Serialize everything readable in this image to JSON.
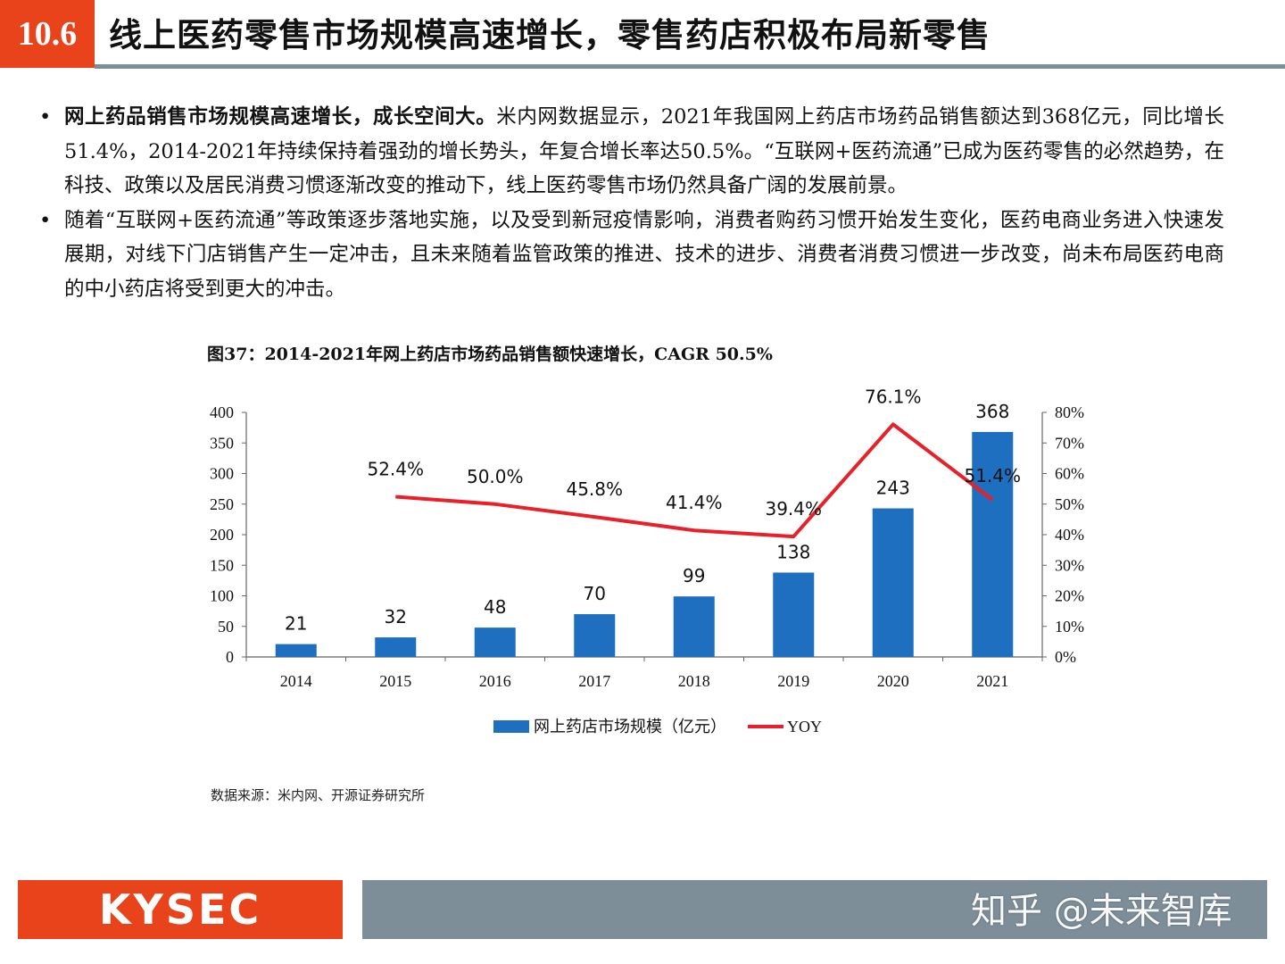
{
  "header": {
    "section_number": "10.6",
    "title": "线上医药零售市场规模高速增长，零售药店积极布局新零售"
  },
  "bullets": [
    {
      "lead": "网上药品销售市场规模高速增长，成长空间大。",
      "text": "米内网数据显示，2021年我国网上药店市场药品销售额达到368亿元，同比增长51.4%，2014-2021年持续保持着强劲的增长势头，年复合增长率达50.5%。“互联网+医药流通”已成为医药零售的必然趋势，在科技、政策以及居民消费习惯逐渐改变的推动下，线上医药零售市场仍然具备广阔的发展前景。"
    },
    {
      "lead": "",
      "text": "随着“互联网+医药流通”等政策逐步落地实施，以及受到新冠疫情影响，消费者购药习惯开始发生变化，医药电商业务进入快速发展期，对线下门店销售产生一定冲击，且未来随着监管政策的推进、技术的进步、消费者消费习惯进一步改变，尚未布局医药电商的中小药店将受到更大的冲击。"
    }
  ],
  "figure": {
    "title": "图37：2014-2021年网上药店市场药品销售额快速增长，CAGR 50.5%"
  },
  "chart_data": {
    "type": "bar",
    "categories": [
      "2014",
      "2015",
      "2016",
      "2017",
      "2018",
      "2019",
      "2020",
      "2021"
    ],
    "series": [
      {
        "name": "网上药店市场规模（亿元）",
        "type": "bar",
        "axis": "left",
        "values": [
          21,
          32,
          48,
          70,
          99,
          138,
          243,
          368
        ],
        "labels": [
          "21",
          "32",
          "48",
          "70",
          "99",
          "138",
          "243",
          "368"
        ],
        "color": "#1f6fc0"
      },
      {
        "name": "YOY",
        "type": "line",
        "axis": "right",
        "values": [
          null,
          52.4,
          50.0,
          45.8,
          41.4,
          39.4,
          76.1,
          51.4
        ],
        "labels": [
          "",
          "52.4%",
          "50.0%",
          "45.8%",
          "41.4%",
          "39.4%",
          "76.1%",
          "51.4%"
        ],
        "color": "#e8202a"
      }
    ],
    "left_axis": {
      "min": 0,
      "max": 400,
      "ticks": [
        "0",
        "50",
        "100",
        "150",
        "200",
        "250",
        "300",
        "350",
        "400"
      ]
    },
    "right_axis": {
      "min": 0,
      "max": 80,
      "ticks": [
        "0%",
        "10%",
        "20%",
        "30%",
        "40%",
        "50%",
        "60%",
        "70%",
        "80%"
      ]
    },
    "grid": false,
    "legend": "bottom"
  },
  "source": "数据来源：米内网、开源证券研究所",
  "footer": {
    "logo": "KYSEC",
    "watermark": "知乎 @未来智库"
  }
}
